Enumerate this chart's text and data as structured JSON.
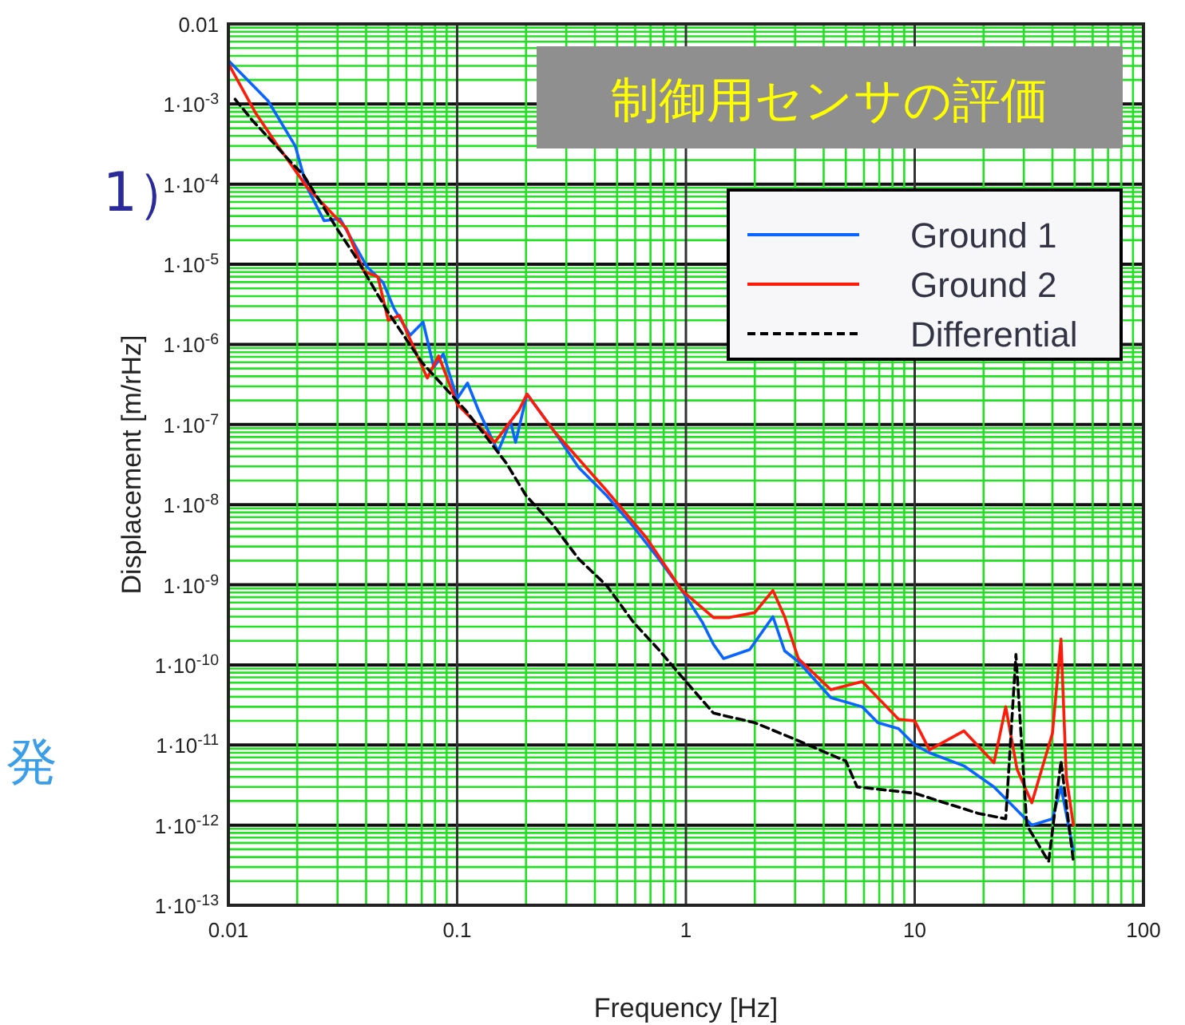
{
  "chart_data": {
    "type": "line",
    "title": "制御用センサの評価",
    "xlabel": "Frequency [Hz]",
    "ylabel": "Displacement [m/rHz]",
    "log": "xy",
    "grid": true,
    "legend": "top right",
    "xlim": [
      0.01,
      100
    ],
    "ylim": [
      1e-13,
      0.01
    ],
    "xticks": [
      0.01,
      0.1,
      1,
      10,
      100,
      {
        "value": 0.02,
        "label": null
      },
      {
        "value": 0.03,
        "label": null
      },
      {
        "value": 0.04,
        "label": null
      },
      {
        "value": 0.05,
        "label": null
      },
      {
        "value": 0.06,
        "label": null
      },
      {
        "value": 0.07,
        "label": null
      },
      {
        "value": 0.08,
        "label": null
      },
      {
        "value": 0.09,
        "label": null
      },
      {
        "value": 0.2,
        "label": null
      },
      {
        "value": 0.3,
        "label": null
      },
      {
        "value": 0.4,
        "label": null
      },
      {
        "value": 0.5,
        "label": null
      },
      {
        "value": 0.6,
        "label": null
      },
      {
        "value": 0.7,
        "label": null
      },
      {
        "value": 0.8,
        "label": null
      },
      {
        "value": 0.9,
        "label": null
      },
      {
        "value": 2,
        "label": null
      },
      {
        "value": 3,
        "label": null
      },
      {
        "value": 4,
        "label": null
      },
      {
        "value": 5,
        "label": null
      },
      {
        "value": 6,
        "label": null
      },
      {
        "value": 7,
        "label": null
      },
      {
        "value": 8,
        "label": null
      },
      {
        "value": 9,
        "label": null
      },
      {
        "value": 20,
        "label": null
      },
      {
        "value": 30,
        "label": null
      },
      {
        "value": 40,
        "label": null
      },
      {
        "value": 50,
        "label": null
      },
      {
        "value": 60,
        "label": null
      },
      {
        "value": 70,
        "label": null
      },
      {
        "value": 80,
        "label": null
      },
      {
        "value": 90,
        "label": null
      }
    ],
    "yticks": [
      {
        "value": 0.01,
        "label": "0.01"
      },
      {
        "value": 0.001,
        "label": "1·10$^{-3}$"
      },
      {
        "value": 0.0001,
        "label": "1·10$^{-4}$"
      },
      {
        "value": 1e-05,
        "label": "1·10$^{-5}$"
      },
      {
        "value": 1e-06,
        "label": "1·10$^{-6}$"
      },
      {
        "value": 1e-07,
        "label": "1·10$^{-7}$"
      },
      {
        "value": 1e-08,
        "label": "1·10$^{-8}$"
      },
      {
        "value": 1e-09,
        "label": "1·10$^{-9}$"
      },
      {
        "value": 1e-10,
        "label": "1·10$^{-10}$"
      },
      {
        "value": 1e-11,
        "label": "1·10$^{-11}$"
      },
      {
        "value": 1e-12,
        "label": "1·10$^{-12}$"
      },
      {
        "value": 1e-13,
        "label": "1·10$^{-13}$"
      },
      {
        "value": 0.002,
        "label": null
      },
      {
        "value": 0.003,
        "label": null
      },
      {
        "value": 0.004,
        "label": null
      },
      {
        "value": 0.005,
        "label": null
      },
      {
        "value": 0.006,
        "label": null
      },
      {
        "value": 0.007,
        "label": null
      },
      {
        "value": 0.008,
        "label": null
      },
      {
        "value": 0.009,
        "label": null
      },
      {
        "value": 0.0002,
        "label": null
      },
      {
        "value": 0.0003,
        "label": null
      },
      {
        "value": 0.0004,
        "label": null
      },
      {
        "value": 0.0005,
        "label": null
      },
      {
        "value": 0.0006,
        "label": null
      },
      {
        "value": 0.0007,
        "label": null
      },
      {
        "value": 0.0008,
        "label": null
      },
      {
        "value": 0.0009,
        "label": null
      },
      {
        "value": 2e-05,
        "label": null
      },
      {
        "value": 3e-05,
        "label": null
      },
      {
        "value": 4e-05,
        "label": null
      },
      {
        "value": 5e-05,
        "label": null
      },
      {
        "value": 6e-05,
        "label": null
      },
      {
        "value": 7e-05,
        "label": null
      },
      {
        "value": 8e-05,
        "label": null
      },
      {
        "value": 9e-05,
        "label": null
      },
      {
        "value": 2e-06,
        "label": null
      },
      {
        "value": 3e-06,
        "label": null
      },
      {
        "value": 4e-06,
        "label": null
      },
      {
        "value": 5e-06,
        "label": null
      },
      {
        "value": 6e-06,
        "label": null
      },
      {
        "value": 7e-06,
        "label": null
      },
      {
        "value": 8e-06,
        "label": null
      },
      {
        "value": 9e-06,
        "label": null
      },
      {
        "value": 2e-07,
        "label": null
      },
      {
        "value": 3e-07,
        "label": null
      },
      {
        "value": 4e-07,
        "label": null
      },
      {
        "value": 5e-07,
        "label": null
      },
      {
        "value": 6e-07,
        "label": null
      },
      {
        "value": 7e-07,
        "label": null
      },
      {
        "value": 8e-07,
        "label": null
      },
      {
        "value": 9e-07,
        "label": null
      },
      {
        "value": 2e-08,
        "label": null
      },
      {
        "value": 3e-08,
        "label": null
      },
      {
        "value": 4e-08,
        "label": null
      },
      {
        "value": 5e-08,
        "label": null
      },
      {
        "value": 6e-08,
        "label": null
      },
      {
        "value": 7e-08,
        "label": null
      },
      {
        "value": 8e-08,
        "label": null
      },
      {
        "value": 9e-08,
        "label": null
      },
      {
        "value": 2e-09,
        "label": null
      },
      {
        "value": 3e-09,
        "label": null
      },
      {
        "value": 4e-09,
        "label": null
      },
      {
        "value": 5e-09,
        "label": null
      },
      {
        "value": 6e-09,
        "label": null
      },
      {
        "value": 7e-09,
        "label": null
      },
      {
        "value": 8e-09,
        "label": null
      },
      {
        "value": 9e-09,
        "label": null
      },
      {
        "value": 2e-10,
        "label": null
      },
      {
        "value": 3e-10,
        "label": null
      },
      {
        "value": 4e-10,
        "label": null
      },
      {
        "value": 5e-10,
        "label": null
      },
      {
        "value": 6e-10,
        "label": null
      },
      {
        "value": 7e-10,
        "label": null
      },
      {
        "value": 8e-10,
        "label": null
      },
      {
        "value": 9e-10,
        "label": null
      },
      {
        "value": 2e-11,
        "label": null
      },
      {
        "value": 3e-11,
        "label": null
      },
      {
        "value": 4e-11,
        "label": null
      },
      {
        "value": 5e-11,
        "label": null
      },
      {
        "value": 6e-11,
        "label": null
      },
      {
        "value": 7e-11,
        "label": null
      },
      {
        "value": 8e-11,
        "label": null
      },
      {
        "value": 9e-11,
        "label": null
      },
      {
        "value": 2e-12,
        "label": null
      },
      {
        "value": 3e-12,
        "label": null
      },
      {
        "value": 4e-12,
        "label": null
      },
      {
        "value": 5e-12,
        "label": null
      },
      {
        "value": 6e-12,
        "label": null
      },
      {
        "value": 7e-12,
        "label": null
      },
      {
        "value": 8e-12,
        "label": null
      },
      {
        "value": 9e-12,
        "label": null
      },
      {
        "value": 2e-13,
        "label": null
      },
      {
        "value": 3e-13,
        "label": null
      },
      {
        "value": 4e-13,
        "label": null
      },
      {
        "value": 5e-13,
        "label": null
      },
      {
        "value": 6e-13,
        "label": null
      },
      {
        "value": 7e-13,
        "label": null
      },
      {
        "value": 8e-13,
        "label": null
      },
      {
        "value": 9e-13,
        "label": null
      }
    ],
    "annotations": [
      "1）",
      "発"
    ],
    "series": [
      {
        "name": "Ground 1",
        "color": "#0a64ff",
        "line_style": "solid",
        "x": [
          0.01,
          0.0149,
          0.0196,
          0.022,
          0.0262,
          0.0308,
          0.0404,
          0.0475,
          0.053,
          0.0623,
          0.071,
          0.079,
          0.087,
          0.1,
          0.111,
          0.124,
          0.151,
          0.171,
          0.18,
          0.202,
          0.265,
          0.34,
          0.45,
          0.59,
          0.76,
          0.96,
          1.18,
          1.32,
          1.46,
          1.9,
          2.4,
          2.7,
          3.1,
          4.3,
          5.9,
          6.9,
          8.5,
          10,
          11.6,
          16.4,
          22.2,
          32.5,
          40,
          43.6,
          49.4
        ],
        "values": [
          0.0035,
          0.0011,
          0.0003,
          9.3e-05,
          3.5e-05,
          3.7e-05,
          9.3e-06,
          5.9e-06,
          2.8e-06,
          1.3e-06,
          1.9e-06,
          5.2e-07,
          7.6e-07,
          2.1e-07,
          3.3e-07,
          1.5e-07,
          4.6e-08,
          1.1e-07,
          6e-08,
          2.4e-07,
          8.3e-08,
          2.9e-08,
          1.3e-08,
          5.3e-09,
          2.1e-09,
          8.5e-10,
          3.4e-10,
          1.8e-10,
          1.2e-10,
          1.55e-10,
          4e-10,
          1.5e-10,
          1.1e-10,
          3.9e-11,
          3e-11,
          1.9e-11,
          1.6e-11,
          1e-11,
          8e-12,
          5.5e-12,
          3e-12,
          1e-12,
          1.2e-12,
          3e-12,
          4.8e-13
        ]
      },
      {
        "name": "Ground 2",
        "color": "#ff1a0a",
        "line_style": "solid",
        "x": [
          0.01,
          0.0131,
          0.0162,
          0.022,
          0.0328,
          0.0392,
          0.045,
          0.05,
          0.056,
          0.074,
          0.083,
          0.1,
          0.146,
          0.186,
          0.202,
          0.265,
          0.45,
          0.67,
          0.96,
          1.32,
          1.55,
          2.0,
          2.4,
          2.7,
          3.1,
          4.3,
          5.9,
          8.5,
          10,
          11.6,
          16.4,
          22.2,
          25,
          28,
          32.5,
          40,
          43.6,
          46,
          49.4
        ],
        "values": [
          0.0032,
          0.00079,
          0.00032,
          9.3e-05,
          2.8e-05,
          8.1e-06,
          7e-06,
          2e-06,
          2.3e-06,
          3.8e-07,
          7.2e-07,
          1.8e-07,
          6e-08,
          1.5e-07,
          2.4e-07,
          8.3e-08,
          1.5e-08,
          3.9e-09,
          8.5e-10,
          3.9e-10,
          3.9e-10,
          4.5e-10,
          8.5e-10,
          4e-10,
          1.2e-10,
          4.9e-11,
          6.2e-11,
          2.1e-11,
          2e-11,
          8.7e-12,
          1.5e-11,
          6e-12,
          3e-11,
          5e-12,
          1.9e-12,
          1.4e-11,
          2.1e-10,
          4e-12,
          1e-12
        ]
      },
      {
        "name": "Differential",
        "color": "#000000",
        "line_style": "dashed",
        "x": [
          0.0107,
          0.0127,
          0.0154,
          0.0187,
          0.0213,
          0.0303,
          0.0356,
          0.05,
          0.07,
          0.109,
          0.128,
          0.164,
          0.2,
          0.265,
          0.34,
          0.45,
          0.59,
          0.76,
          1.0,
          1.32,
          2.0,
          2.95,
          5.0,
          5.6,
          10,
          19,
          25,
          27.7,
          30.9,
          38.5,
          43.6,
          49.4
        ],
        "values": [
          0.00115,
          0.00063,
          0.00035,
          0.00019,
          0.00013,
          2.6e-05,
          1.3e-05,
          2.5e-06,
          6e-07,
          1.5e-07,
          8.3e-08,
          3.3e-08,
          1.3e-08,
          5.4e-09,
          2.1e-09,
          9.8e-10,
          3.4e-10,
          1.55e-10,
          6.2e-11,
          2.5e-11,
          1.9e-11,
          1.2e-11,
          6.3e-12,
          3e-12,
          2.5e-12,
          1.4e-12,
          1.2e-12,
          1.35e-10,
          1e-12,
          3.5e-13,
          6.3e-12,
          3.5e-13
        ]
      }
    ]
  }
}
